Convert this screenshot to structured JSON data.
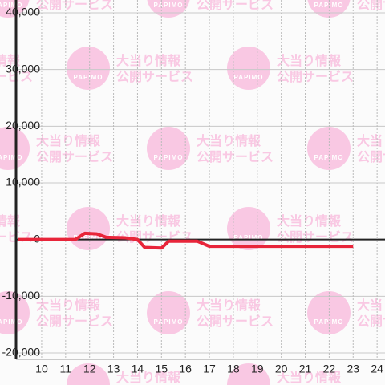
{
  "chart_data": {
    "type": "line",
    "watermark": {
      "logo": "PAPIMO",
      "line1": "大当り情報",
      "line2": "公開サービス"
    },
    "x": [
      9,
      11.4,
      11.8,
      12.3,
      12.7,
      13.5,
      14,
      14.3,
      15,
      15.3,
      16.5,
      17,
      23
    ],
    "series": [
      {
        "color": "#e8253a",
        "values": [
          0,
          0,
          1100,
          1000,
          400,
          300,
          0,
          -1400,
          -1500,
          -300,
          -300,
          -1200,
          -1200
        ]
      }
    ],
    "xlim": [
      8.93,
      24.33
    ],
    "xticks": [
      10,
      11,
      12,
      13,
      14,
      15,
      16,
      17,
      18,
      19,
      20,
      21,
      22,
      23,
      24
    ],
    "ylim": [
      -20000,
      40000
    ],
    "yticks": [
      {
        "value": -20000,
        "label": "-20,000"
      },
      {
        "value": -10000,
        "label": "-10,000"
      },
      0,
      {
        "value": 10000,
        "label": "10,000"
      },
      {
        "value": 20000,
        "label": "20,000"
      },
      {
        "value": 30000,
        "label": "30,000"
      },
      {
        "value": 40000,
        "label": "40,000"
      }
    ],
    "grid": true
  }
}
